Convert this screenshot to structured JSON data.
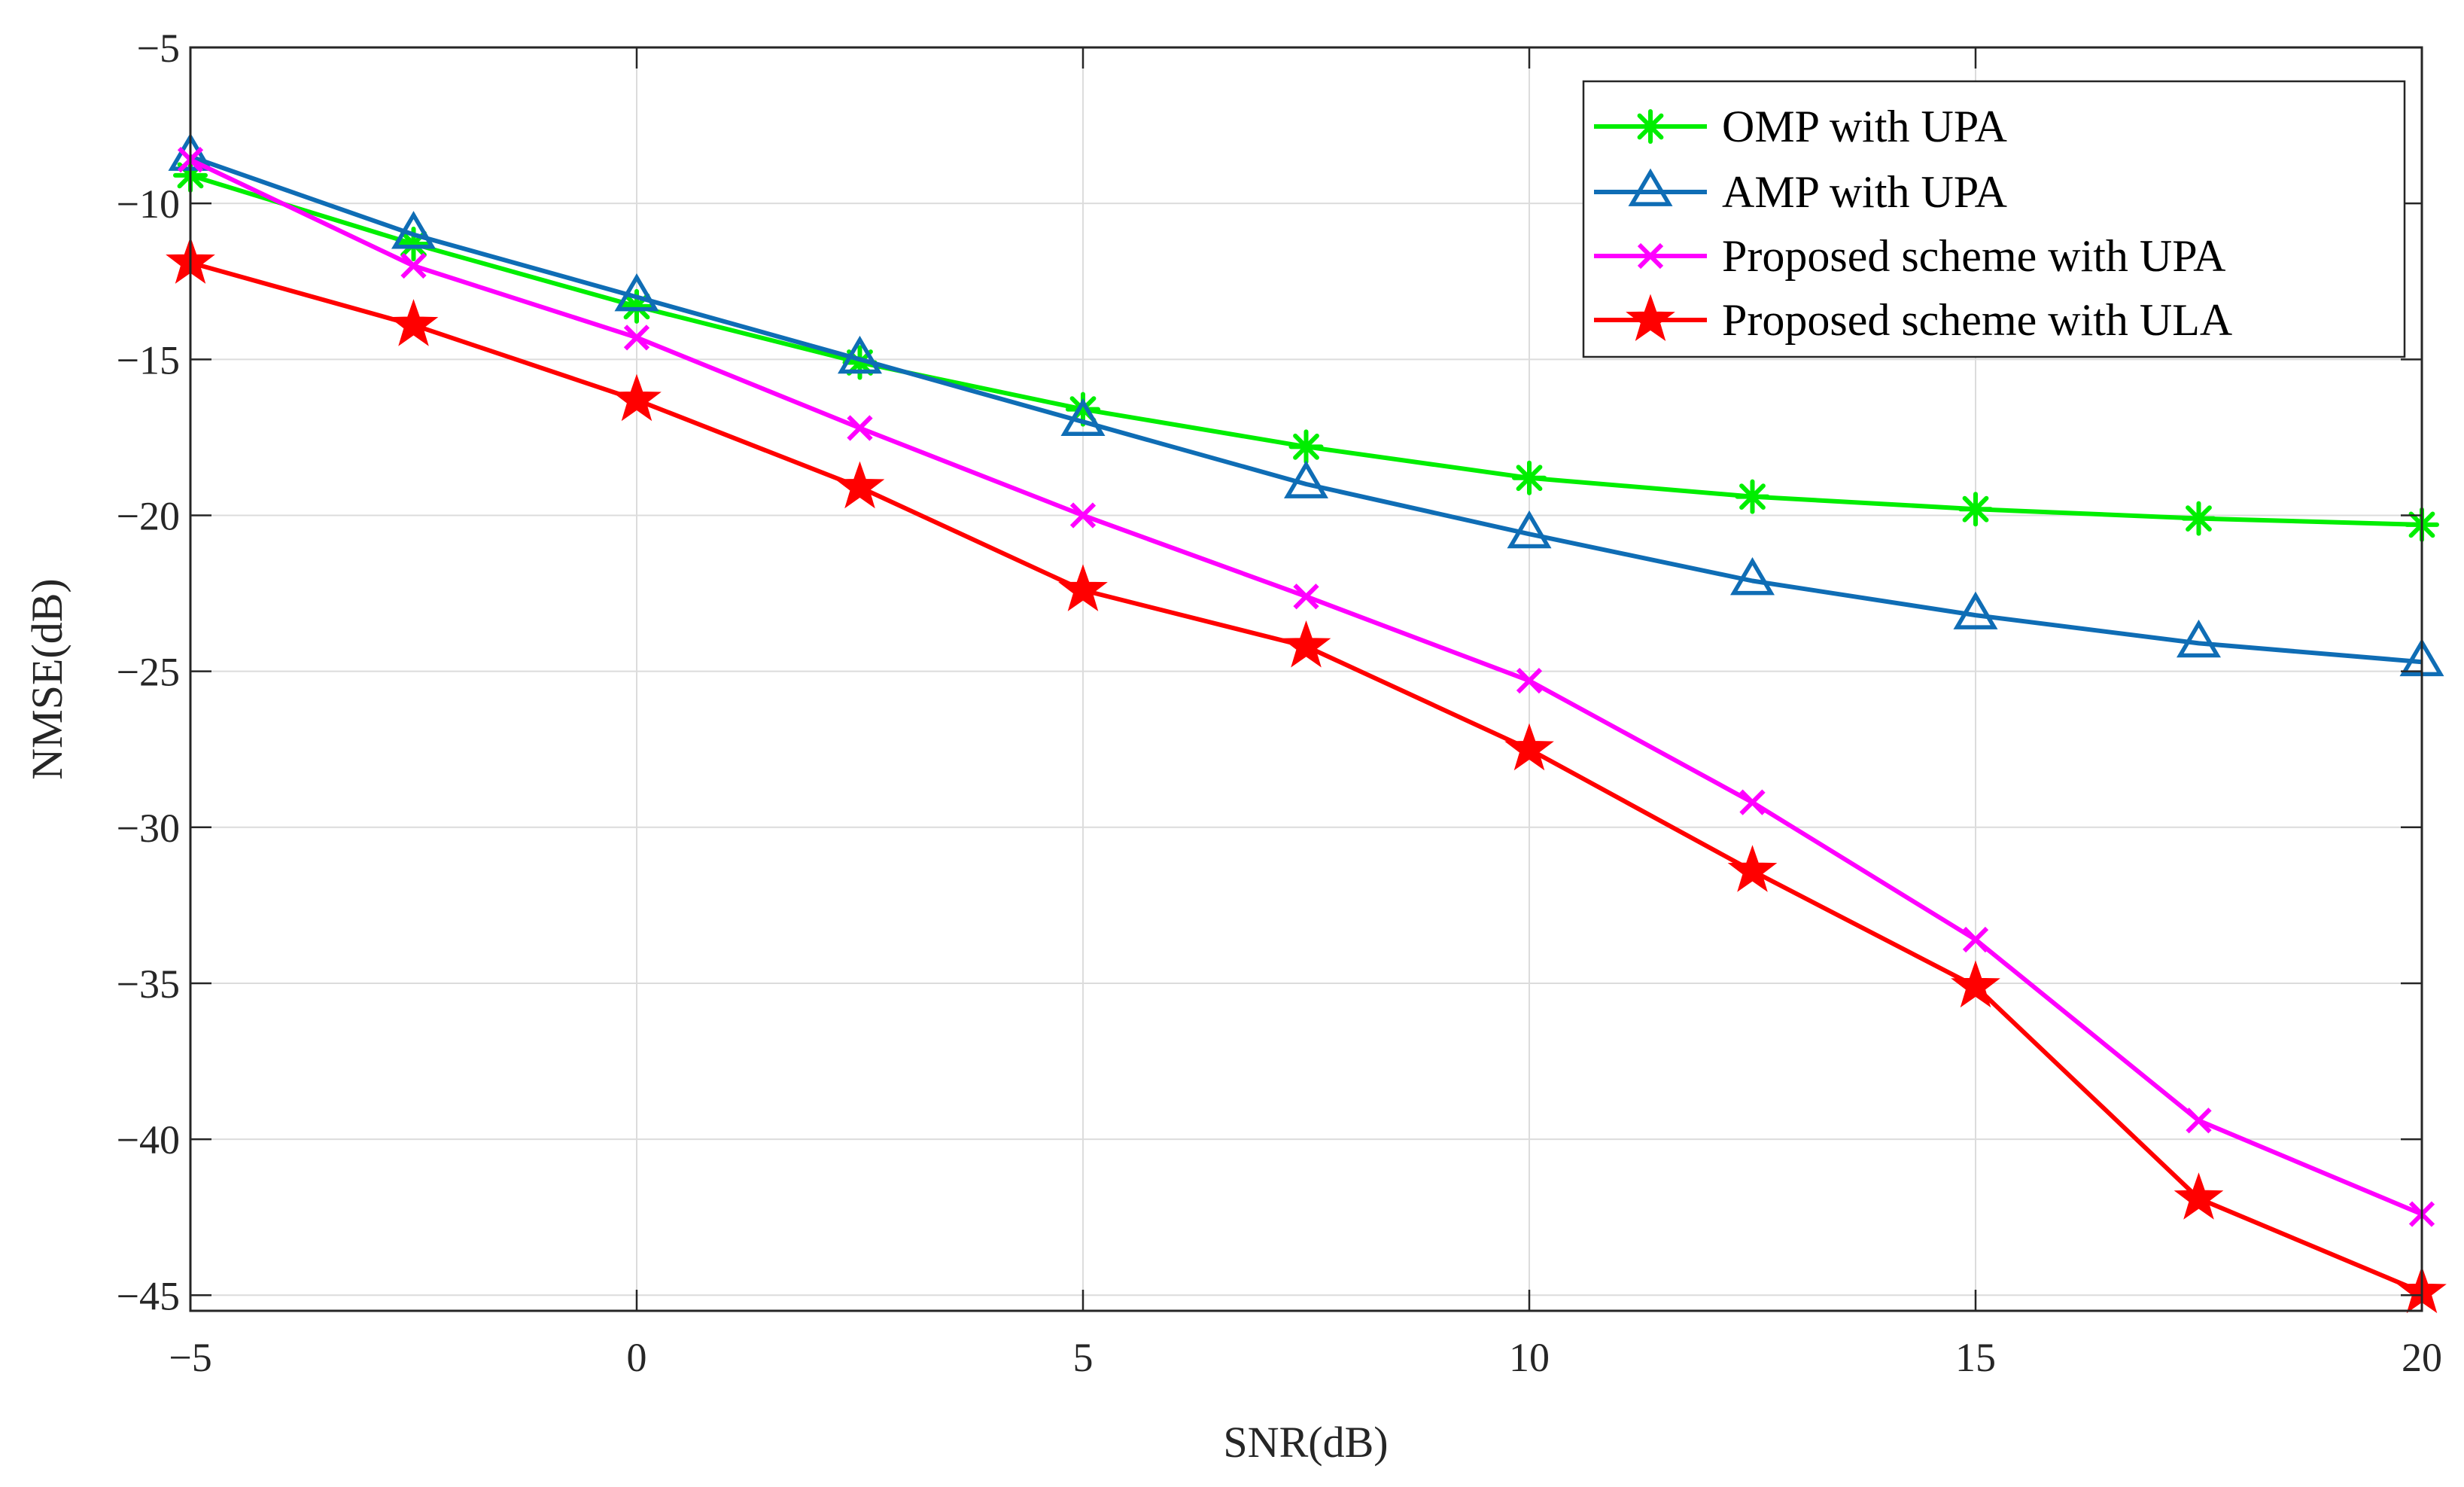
{
  "chart_data": {
    "type": "line",
    "title": "",
    "xlabel": "SNR(dB)",
    "ylabel": "NMSE(dB)",
    "xlim": [
      -5,
      20
    ],
    "ylim": [
      -45.5,
      -5
    ],
    "xticks": [
      -5,
      0,
      5,
      10,
      15,
      20
    ],
    "yticks": [
      -5,
      -10,
      -15,
      -20,
      -25,
      -30,
      -35,
      -40,
      -45
    ],
    "xtick_labels": [
      "−5",
      "0",
      "5",
      "10",
      "15",
      "20"
    ],
    "ytick_labels": [
      "−5",
      "−10",
      "−15",
      "−20",
      "−25",
      "−30",
      "−35",
      "−40",
      "−45"
    ],
    "grid": true,
    "legend_position": "top-right",
    "x": [
      -5,
      -2.5,
      0,
      2.5,
      5,
      7.5,
      10,
      12.5,
      15,
      17.5,
      20
    ],
    "series": [
      {
        "name": "OMP with UPA",
        "color": "#00ee00",
        "marker": "asterisk",
        "values": [
          -9.1,
          -11.3,
          -13.3,
          -15.1,
          -16.6,
          -17.8,
          -18.8,
          -19.4,
          -19.8,
          -20.1,
          -20.3
        ]
      },
      {
        "name": "AMP with UPA",
        "color": "#0f6db5",
        "marker": "triangle",
        "values": [
          -8.5,
          -11.0,
          -13.0,
          -15.0,
          -17.0,
          -19.0,
          -20.6,
          -22.1,
          -23.2,
          -24.1,
          -24.7
        ]
      },
      {
        "name": "Proposed scheme with UPA",
        "color": "#ff00ff",
        "marker": "x",
        "values": [
          -8.6,
          -12.0,
          -14.3,
          -17.2,
          -20.0,
          -22.6,
          -25.3,
          -29.2,
          -33.6,
          -39.4,
          -42.4
        ]
      },
      {
        "name": "Proposed scheme with ULA",
        "color": "#ff0000",
        "marker": "star",
        "values": [
          -11.9,
          -13.9,
          -16.3,
          -19.1,
          -22.4,
          -24.2,
          -27.5,
          -31.4,
          -35.1,
          -41.9,
          -44.9
        ]
      }
    ]
  }
}
